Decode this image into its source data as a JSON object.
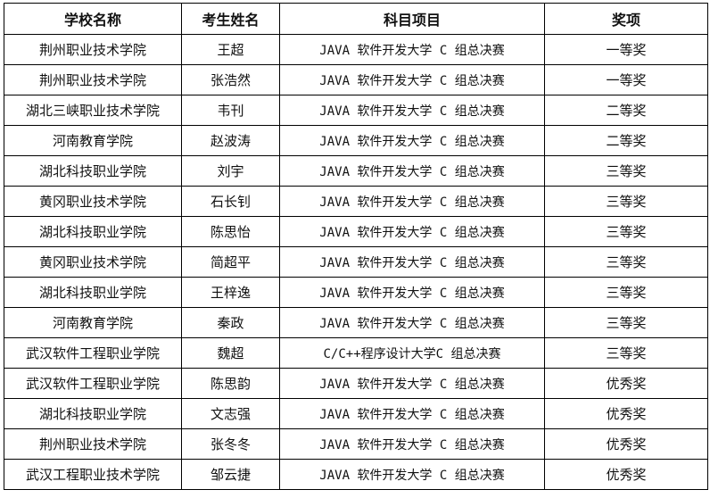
{
  "headers": [
    "学校名称",
    "考生姓名",
    "科目项目",
    "奖项"
  ],
  "rows": [
    [
      "荆州职业技术学院",
      "王超",
      "JAVA 软件开发大学 C 组总决赛",
      "一等奖"
    ],
    [
      "荆州职业技术学院",
      "张浩然",
      "JAVA 软件开发大学 C 组总决赛",
      "一等奖"
    ],
    [
      "湖北三峡职业技术学院",
      "韦刊",
      "JAVA 软件开发大学 C 组总决赛",
      "二等奖"
    ],
    [
      "河南教育学院",
      "赵波涛",
      "JAVA 软件开发大学 C 组总决赛",
      "二等奖"
    ],
    [
      "湖北科技职业学院",
      "刘宇",
      "JAVA 软件开发大学 C 组总决赛",
      "三等奖"
    ],
    [
      "黄冈职业技术学院",
      "石长钊",
      "JAVA 软件开发大学 C 组总决赛",
      "三等奖"
    ],
    [
      "湖北科技职业学院",
      "陈思怡",
      "JAVA 软件开发大学 C 组总决赛",
      "三等奖"
    ],
    [
      "黄冈职业技术学院",
      "简超平",
      "JAVA 软件开发大学 C 组总决赛",
      "三等奖"
    ],
    [
      "湖北科技职业学院",
      "王梓逸",
      "JAVA 软件开发大学 C 组总决赛",
      "三等奖"
    ],
    [
      "河南教育学院",
      "秦政",
      "JAVA 软件开发大学 C 组总决赛",
      "三等奖"
    ],
    [
      "武汉软件工程职业学院",
      "魏超",
      "C/C++程序设计大学C 组总决赛",
      "三等奖"
    ],
    [
      "武汉软件工程职业学院",
      "陈思韵",
      "JAVA 软件开发大学 C 组总决赛",
      "优秀奖"
    ],
    [
      "湖北科技职业学院",
      "文志强",
      "JAVA 软件开发大学 C 组总决赛",
      "优秀奖"
    ],
    [
      "荆州职业技术学院",
      "张冬冬",
      "JAVA 软件开发大学 C 组总决赛",
      "优秀奖"
    ],
    [
      "武汉工程职业技术学院",
      "邹云捷",
      "JAVA 软件开发大学 C 组总决赛",
      "优秀奖"
    ]
  ]
}
